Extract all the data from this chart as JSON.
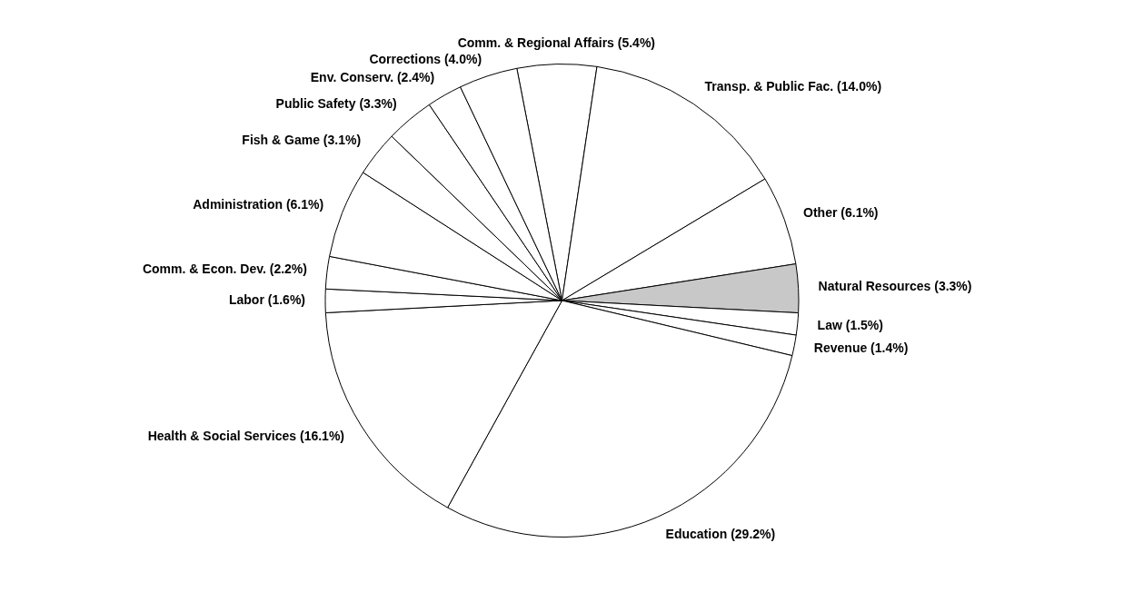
{
  "chart_data": {
    "type": "pie",
    "categories": [
      "Comm. & Regional Affairs",
      "Transp. & Public Fac.",
      "Other",
      "Natural Resources",
      "Law",
      "Revenue",
      "Education",
      "Health & Social Services",
      "Labor",
      "Comm. & Econ. Dev.",
      "Administration",
      "Fish & Game",
      "Public Safety",
      "Env. Conserv.",
      "Corrections"
    ],
    "values": [
      5.4,
      14.0,
      6.1,
      3.3,
      1.5,
      1.4,
      29.2,
      16.1,
      1.6,
      2.2,
      6.1,
      3.1,
      3.3,
      2.4,
      4.0
    ],
    "value_labels": [
      "(5.4%)",
      "(14.0%)",
      "(6.1%)",
      "(3.3%)",
      "(1.5%)",
      "(1.4%)",
      "(29.2%)",
      "(16.1%)",
      "(1.6%)",
      "(2.2%)",
      "(6.1%)",
      "(3.1%)",
      "(3.3%)",
      "(2.4%)",
      "(4.0%)"
    ],
    "colors": [
      "#ffffff",
      "#ffffff",
      "#ffffff",
      "#c8c8c8",
      "#ffffff",
      "#ffffff",
      "#ffffff",
      "#ffffff",
      "#ffffff",
      "#ffffff",
      "#ffffff",
      "#ffffff",
      "#ffffff",
      "#ffffff",
      "#ffffff"
    ],
    "legend": false
  }
}
